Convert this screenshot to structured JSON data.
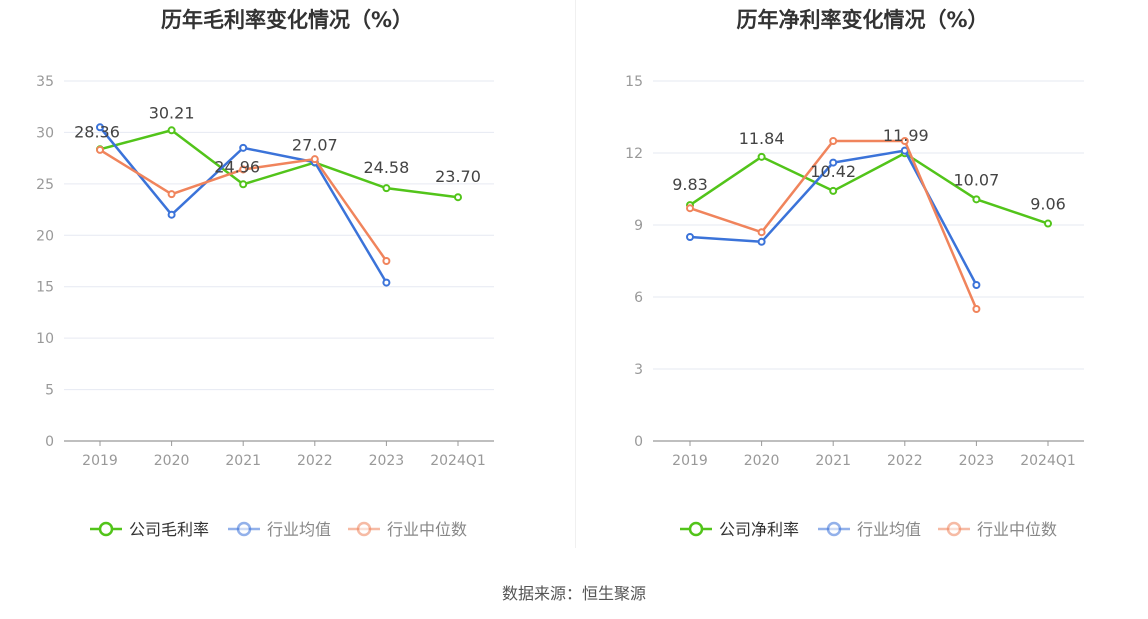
{
  "chart_data": [
    {
      "type": "line",
      "title": "历年毛利率变化情况（%）",
      "categories": [
        "2019",
        "2020",
        "2021",
        "2022",
        "2023",
        "2024Q1"
      ],
      "yticks": [
        0,
        5,
        10,
        15,
        20,
        25,
        30,
        35
      ],
      "ylim": [
        0,
        35
      ],
      "grid": true,
      "legend_position": "bottom",
      "series": [
        {
          "name": "公司毛利率",
          "color": "#52c41a",
          "values": [
            28.36,
            30.21,
            24.96,
            27.07,
            24.58,
            23.7
          ],
          "labels": [
            "28.36",
            "30.21",
            "24.96",
            "27.07",
            "24.58",
            "23.70"
          ]
        },
        {
          "name": "行业均值",
          "color": "#3b73d9",
          "values": [
            30.5,
            22.0,
            28.5,
            27.1,
            15.4,
            null
          ]
        },
        {
          "name": "行业中位数",
          "color": "#f0845c",
          "values": [
            28.3,
            24.0,
            26.4,
            27.4,
            17.5,
            null
          ]
        }
      ]
    },
    {
      "type": "line",
      "title": "历年净利率变化情况（%）",
      "categories": [
        "2019",
        "2020",
        "2021",
        "2022",
        "2023",
        "2024Q1"
      ],
      "yticks": [
        0,
        3,
        6,
        9,
        12,
        15
      ],
      "ylim": [
        0,
        15
      ],
      "grid": true,
      "legend_position": "bottom",
      "series": [
        {
          "name": "公司净利率",
          "color": "#52c41a",
          "values": [
            9.83,
            11.84,
            10.42,
            11.99,
            10.07,
            9.06
          ],
          "labels": [
            "9.83",
            "11.84",
            "10.42",
            "11.99",
            "10.07",
            "9.06"
          ]
        },
        {
          "name": "行业均值",
          "color": "#3b73d9",
          "values": [
            8.5,
            8.3,
            11.6,
            12.1,
            6.5,
            null
          ]
        },
        {
          "name": "行业中位数",
          "color": "#f0845c",
          "values": [
            9.7,
            8.7,
            12.5,
            12.5,
            5.5,
            null
          ]
        }
      ]
    }
  ],
  "source": "数据来源：恒生聚源"
}
